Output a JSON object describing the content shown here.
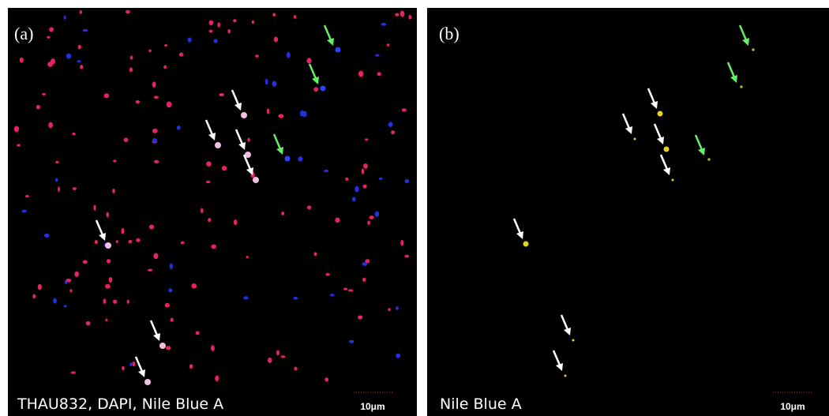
{
  "panels": [
    {
      "label": "(a)",
      "caption": "THAU832, DAPI, Nile Blue A",
      "scale_bar": "10μm"
    },
    {
      "label": "(b)",
      "caption": "Nile Blue A",
      "scale_bar": "10μm"
    }
  ]
}
